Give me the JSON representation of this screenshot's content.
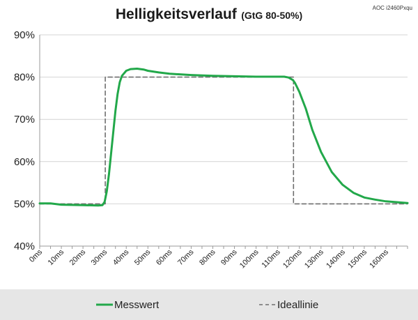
{
  "chart_data": {
    "type": "line",
    "title": "Helligkeitsverlauf",
    "subtitle": "(GtG 80-50%)",
    "corner_label": "AOC i2460Pxqu",
    "xlabel": "",
    "ylabel": "",
    "xlim": [
      0,
      170
    ],
    "ylim": [
      40,
      90
    ],
    "y_ticks": [
      "40%",
      "50%",
      "60%",
      "70%",
      "80%",
      "90%"
    ],
    "x_ticks": [
      "0ms",
      "10ms",
      "20ms",
      "30ms",
      "40ms",
      "50ms",
      "60ms",
      "70ms",
      "80ms",
      "90ms",
      "100ms",
      "110ms",
      "120ms",
      "130ms",
      "140ms",
      "150ms",
      "160ms"
    ],
    "grid": "horizontal",
    "legend_position": "bottom",
    "series": [
      {
        "name": "Messwert",
        "color": "#22a84a",
        "style": "solid",
        "x": [
          0,
          5,
          10,
          20,
          27,
          29,
          30,
          31,
          32,
          33,
          34,
          35,
          36,
          37,
          38,
          40,
          42,
          45,
          48,
          50,
          55,
          60,
          70,
          80,
          90,
          100,
          108,
          113,
          115,
          117,
          118,
          120,
          123,
          126,
          130,
          135,
          140,
          145,
          150,
          155,
          160,
          165,
          170
        ],
        "y": [
          50.1,
          50.1,
          49.8,
          49.7,
          49.6,
          49.7,
          50.5,
          53,
          57,
          62,
          67,
          72,
          76,
          78.8,
          80.3,
          81.5,
          81.9,
          82,
          81.8,
          81.5,
          81.1,
          80.8,
          80.5,
          80.3,
          80.2,
          80.1,
          80.1,
          80.1,
          79.9,
          79.3,
          78.6,
          76.5,
          72.5,
          67.5,
          62.3,
          57.5,
          54.5,
          52.6,
          51.5,
          51,
          50.6,
          50.4,
          50.2
        ]
      },
      {
        "name": "Ideallinie",
        "color": "#6e6e6e",
        "style": "dashed",
        "x": [
          0,
          30.3,
          30.3,
          117.3,
          117.3,
          170
        ],
        "y": [
          50,
          50,
          80,
          80,
          50,
          50
        ]
      }
    ]
  },
  "legend": {
    "items": [
      {
        "label": "Messwert",
        "color": "#22a84a",
        "style": "solid"
      },
      {
        "label": "Ideallinie",
        "color": "#6e6e6e",
        "style": "dashed"
      }
    ]
  }
}
